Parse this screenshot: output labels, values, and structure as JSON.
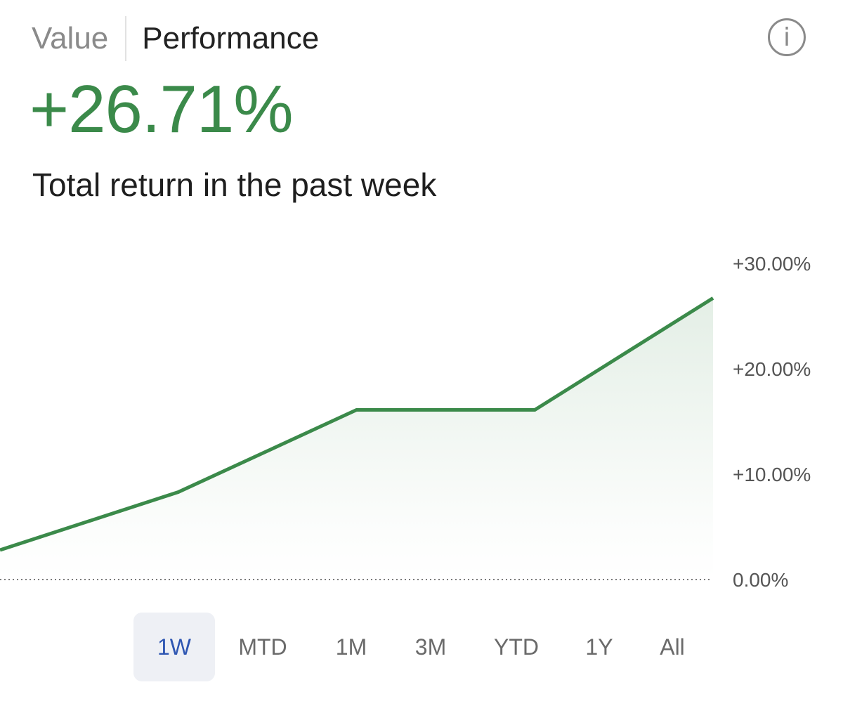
{
  "header": {
    "tabs": [
      {
        "label": "Value",
        "active": false
      },
      {
        "label": "Performance",
        "active": true
      }
    ],
    "info_icon": "info-circle-icon"
  },
  "summary": {
    "value": "+26.71%",
    "description": "Total return in the past week"
  },
  "colors": {
    "positive": "#3b8a4a",
    "active_range": "#2e56b2",
    "active_range_bg": "#eef0f5"
  },
  "chart_data": {
    "type": "area",
    "x": [
      0,
      1,
      2,
      3,
      4
    ],
    "values": [
      2.8,
      8.3,
      16.1,
      16.1,
      26.71
    ],
    "ylim": [
      0,
      30
    ],
    "yticks": [
      0,
      10,
      20,
      30
    ],
    "ytick_labels": [
      "0.00%",
      "+10.00%",
      "+20.00%",
      "+30.00%"
    ],
    "baseline_style": "dotted",
    "grid": false
  },
  "ranges": {
    "options": [
      "1W",
      "MTD",
      "1M",
      "3M",
      "YTD",
      "1Y",
      "All"
    ],
    "selected": "1W"
  }
}
